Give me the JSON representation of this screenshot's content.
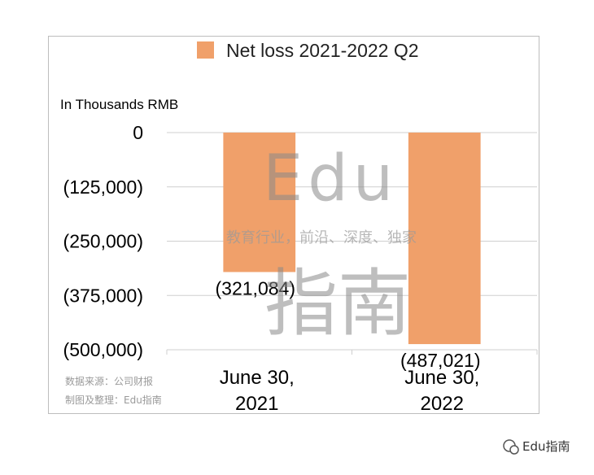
{
  "chart_data": {
    "type": "bar",
    "categories": [
      "June 30,\n2021",
      "June 30,\n2022"
    ],
    "series": [
      {
        "name": "Net loss 2021-2022 Q2",
        "values": [
          -321084,
          -487021
        ],
        "color": "#f0a06a"
      }
    ],
    "data_labels": [
      "(321,084)",
      "(487,021)"
    ],
    "ylabel": "In Thousands RMB",
    "ylim": [
      -500000,
      0
    ],
    "yticks": [
      0,
      -125000,
      -250000,
      -375000,
      -500000
    ],
    "ytick_labels": [
      "0",
      "(125,000)",
      "(250,000)",
      "(375,000)",
      "(500,000)"
    ],
    "grid": true,
    "legend_position": "top"
  },
  "watermark": {
    "big_line1": "Edu",
    "big_line2": "指南",
    "tagline": "教育行业，前沿、深度、独家"
  },
  "source_note": [
    "数据来源：公司财报",
    "制图及整理：Edu指南"
  ],
  "footer_brand": "Edu指南",
  "colors": {
    "bar": "#f0a06a",
    "grid": "#cfcfcf",
    "frame": "#bdbdbd"
  }
}
